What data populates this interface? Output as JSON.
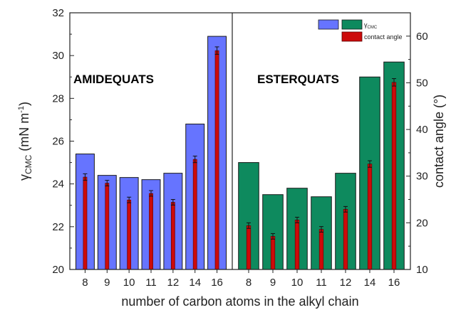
{
  "chart_data": {
    "type": "bar",
    "xlabel": "number of carbon atoms in the alkyl chain",
    "ylabel_left": "γCMC (mN m-1)",
    "ylabel_left_base": "γ",
    "ylabel_left_sub": "CMC",
    "ylabel_left_unit": " (mN m",
    "ylabel_left_sup": "-1",
    "ylabel_left_close": ")",
    "ylabel_right": "contact angle (°)",
    "ylim_left": [
      20,
      32
    ],
    "ylim_right": [
      10,
      65
    ],
    "yticks_left": [
      20,
      22,
      24,
      26,
      28,
      30,
      32
    ],
    "yticks_right": [
      10,
      20,
      30,
      40,
      50,
      60
    ],
    "legend": {
      "placement": "top-right",
      "entries": [
        {
          "label": "γCMC",
          "base": "γ",
          "sub": "CMC"
        },
        {
          "label": "contact angle"
        }
      ]
    },
    "panels": [
      {
        "label": "AMIDEQUATS",
        "categories": [
          "8",
          "9",
          "10",
          "11",
          "12",
          "14",
          "16"
        ],
        "gamma_cmc": [
          25.4,
          24.4,
          24.3,
          24.2,
          24.5,
          26.8,
          30.9
        ],
        "contact_angle": [
          29.8,
          28.5,
          24.9,
          26.3,
          24.4,
          33.6,
          56.9
        ],
        "contact_angle_err": [
          0.7,
          0.6,
          0.6,
          0.6,
          0.6,
          0.7,
          0.8
        ],
        "gamma_color": "#6674ff",
        "contact_color": "#cc0a0a"
      },
      {
        "label": "ESTERQUATS",
        "categories": [
          "8",
          "9",
          "10",
          "11",
          "12",
          "14",
          "16"
        ],
        "gamma_cmc": [
          25.0,
          23.5,
          23.8,
          23.4,
          24.5,
          29.0,
          29.7
        ],
        "contact_angle": [
          19.4,
          17.1,
          20.6,
          18.6,
          22.9,
          32.6,
          50.1
        ],
        "contact_angle_err": [
          0.6,
          0.6,
          0.6,
          0.6,
          0.6,
          0.7,
          0.8
        ],
        "gamma_color": "#0e8a5e",
        "contact_color": "#cc0a0a"
      }
    ]
  }
}
